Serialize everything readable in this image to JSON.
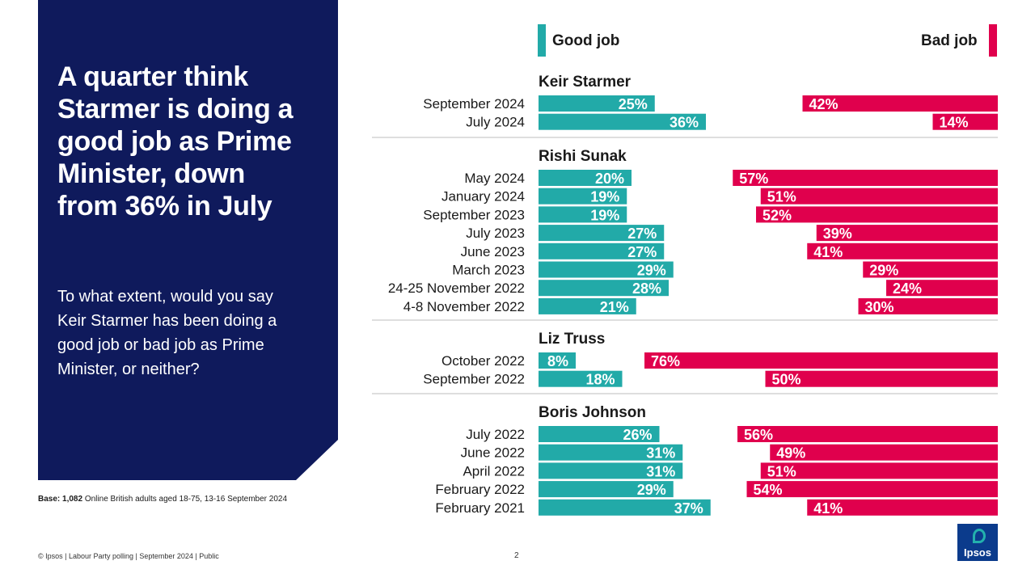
{
  "headline": "A quarter think Starmer is doing a good job as Prime Minister, down from 36% in July",
  "question": "To what extent, would you say Keir Starmer has been doing a good job or bad job as Prime Minister, or neither?",
  "base": {
    "label": "Base:",
    "value": "1,082",
    "text": "Online British adults aged 18-75, 13-16 September 2024"
  },
  "footer": "© Ipsos | Labour Party polling | September 2024 | Public",
  "page_number": "2",
  "logo_text": "Ipsos",
  "colors": {
    "good": "#22aaa8",
    "bad": "#e0004d",
    "panel": "#0f1a5c"
  },
  "chart_data": {
    "type": "bar",
    "legend": {
      "good": "Good job",
      "bad": "Bad job"
    },
    "groups": [
      {
        "name": "Keir Starmer",
        "rows": [
          {
            "label": "September 2024",
            "good": 25,
            "bad": 42
          },
          {
            "label": "July 2024",
            "good": 36,
            "bad": 14
          }
        ]
      },
      {
        "name": "Rishi Sunak",
        "rows": [
          {
            "label": "May 2024",
            "good": 20,
            "bad": 57
          },
          {
            "label": "January 2024",
            "good": 19,
            "bad": 51
          },
          {
            "label": "September 2023",
            "good": 19,
            "bad": 52
          },
          {
            "label": "July 2023",
            "good": 27,
            "bad": 39
          },
          {
            "label": "June 2023",
            "good": 27,
            "bad": 41
          },
          {
            "label": "March 2023",
            "good": 29,
            "bad": 29
          },
          {
            "label": "24-25 November 2022",
            "good": 28,
            "bad": 24
          },
          {
            "label": "4-8 November 2022",
            "good": 21,
            "bad": 30
          }
        ]
      },
      {
        "name": "Liz Truss",
        "rows": [
          {
            "label": "October 2022",
            "good": 8,
            "bad": 76
          },
          {
            "label": "September 2022",
            "good": 18,
            "bad": 50
          }
        ]
      },
      {
        "name": "Boris Johnson",
        "rows": [
          {
            "label": "July 2022",
            "good": 26,
            "bad": 56
          },
          {
            "label": "June 2022",
            "good": 31,
            "bad": 49
          },
          {
            "label": "April 2022",
            "good": 31,
            "bad": 51
          },
          {
            "label": "February 2022",
            "good": 29,
            "bad": 54
          },
          {
            "label": "February 2021",
            "good": 37,
            "bad": 41
          }
        ]
      }
    ]
  }
}
